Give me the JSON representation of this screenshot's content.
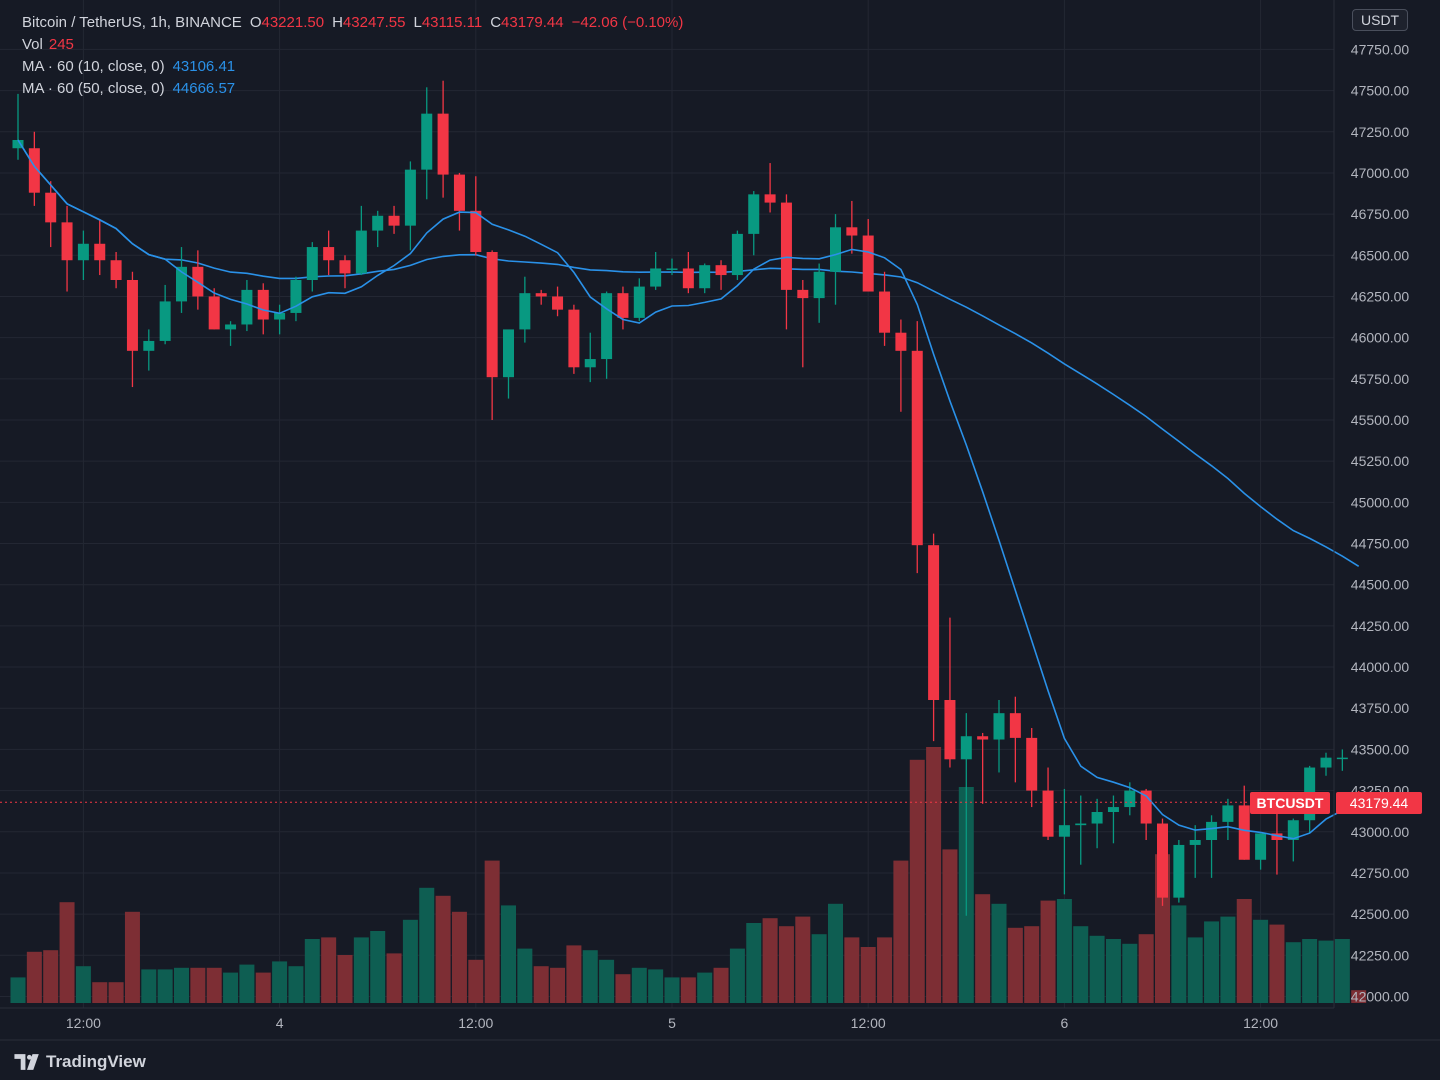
{
  "legend": {
    "title": "Bitcoin / TetherUS, 1h, BINANCE",
    "open_label": "O",
    "open": "43221.50",
    "high_label": "H",
    "high": "43247.55",
    "low_label": "L",
    "low": "43115.11",
    "close_label": "C",
    "close": "43179.44",
    "change": "−42.06 (−0.10%)",
    "vol_label": "Vol",
    "vol": "245",
    "ma1_label": "MA · 60 (10, close, 0)",
    "ma1": "43106.41",
    "ma2_label": "MA · 60 (50, close, 0)",
    "ma2": "44666.57"
  },
  "currency_badge": "USDT",
  "last_price_tag": {
    "symbol": "BTCUSDT",
    "price": "43179.44"
  },
  "brand": {
    "name": "TradingView",
    "icon": "tradingview-logo-icon"
  },
  "colors": {
    "up": "#089981",
    "down": "#f23645",
    "ma": "#2a91e8",
    "background": "#161a25",
    "grid": "#232733"
  },
  "chart_data": {
    "type": "candlestick",
    "symbol": "BTCUSDT",
    "interval": "1h",
    "y_ticks": [
      "47750.00",
      "47500.00",
      "47250.00",
      "47000.00",
      "46750.00",
      "46500.00",
      "46250.00",
      "46000.00",
      "45750.00",
      "45500.00",
      "45250.00",
      "45000.00",
      "44750.00",
      "44500.00",
      "44250.00",
      "44000.00",
      "43750.00",
      "43500.00",
      "43250.00",
      "43000.00",
      "42750.00",
      "42500.00",
      "42250.00",
      "42000.00"
    ],
    "y_tick_values": [
      47750,
      47500,
      47250,
      47000,
      46750,
      46500,
      46250,
      46000,
      45750,
      45500,
      45250,
      45000,
      44750,
      44500,
      44250,
      44000,
      43750,
      43500,
      43250,
      43000,
      42750,
      42500,
      42250,
      42000
    ],
    "ylim": [
      41930,
      48050
    ],
    "x_ticks": [
      {
        "label": "12:00",
        "index": 4
      },
      {
        "label": "4",
        "index": 16
      },
      {
        "label": "12:00",
        "index": 28
      },
      {
        "label": "5",
        "index": 40
      },
      {
        "label": "12:00",
        "index": 52
      },
      {
        "label": "6",
        "index": 64
      },
      {
        "label": "12:00",
        "index": 76
      }
    ],
    "volume_range": [
      0,
      10
    ],
    "candles": [
      {
        "o": 47150,
        "h": 47480,
        "l": 47080,
        "c": 47200,
        "v": 1.6
      },
      {
        "o": 47150,
        "h": 47250,
        "l": 46800,
        "c": 46880,
        "v": 3.2
      },
      {
        "o": 46880,
        "h": 46950,
        "l": 46550,
        "c": 46700,
        "v": 3.3
      },
      {
        "o": 46700,
        "h": 46800,
        "l": 46280,
        "c": 46470,
        "v": 6.3
      },
      {
        "o": 46470,
        "h": 46650,
        "l": 46350,
        "c": 46570,
        "v": 2.3
      },
      {
        "o": 46570,
        "h": 46720,
        "l": 46380,
        "c": 46470,
        "v": 1.3
      },
      {
        "o": 46470,
        "h": 46520,
        "l": 46300,
        "c": 46350,
        "v": 1.3
      },
      {
        "o": 46350,
        "h": 46400,
        "l": 45700,
        "c": 45920,
        "v": 5.7
      },
      {
        "o": 45920,
        "h": 46050,
        "l": 45800,
        "c": 45980,
        "v": 2.1
      },
      {
        "o": 45980,
        "h": 46320,
        "l": 45960,
        "c": 46220,
        "v": 2.1
      },
      {
        "o": 46220,
        "h": 46550,
        "l": 46150,
        "c": 46430,
        "v": 2.2
      },
      {
        "o": 46430,
        "h": 46530,
        "l": 46170,
        "c": 46250,
        "v": 2.2
      },
      {
        "o": 46250,
        "h": 46300,
        "l": 46050,
        "c": 46050,
        "v": 2.2
      },
      {
        "o": 46050,
        "h": 46100,
        "l": 45950,
        "c": 46080,
        "v": 1.9
      },
      {
        "o": 46080,
        "h": 46350,
        "l": 46040,
        "c": 46290,
        "v": 2.4
      },
      {
        "o": 46290,
        "h": 46330,
        "l": 46020,
        "c": 46110,
        "v": 1.9
      },
      {
        "o": 46110,
        "h": 46200,
        "l": 46020,
        "c": 46150,
        "v": 2.6
      },
      {
        "o": 46150,
        "h": 46370,
        "l": 46100,
        "c": 46350,
        "v": 2.3
      },
      {
        "o": 46350,
        "h": 46580,
        "l": 46280,
        "c": 46550,
        "v": 4.0
      },
      {
        "o": 46550,
        "h": 46650,
        "l": 46380,
        "c": 46470,
        "v": 4.1
      },
      {
        "o": 46470,
        "h": 46500,
        "l": 46300,
        "c": 46390,
        "v": 3.0
      },
      {
        "o": 46390,
        "h": 46800,
        "l": 46380,
        "c": 46650,
        "v": 4.1
      },
      {
        "o": 46650,
        "h": 46770,
        "l": 46550,
        "c": 46740,
        "v": 4.5
      },
      {
        "o": 46740,
        "h": 46800,
        "l": 46630,
        "c": 46680,
        "v": 3.1
      },
      {
        "o": 46680,
        "h": 47070,
        "l": 46530,
        "c": 47020,
        "v": 5.2
      },
      {
        "o": 47020,
        "h": 47520,
        "l": 46840,
        "c": 47360,
        "v": 7.2
      },
      {
        "o": 47360,
        "h": 47560,
        "l": 46850,
        "c": 46990,
        "v": 6.7
      },
      {
        "o": 46990,
        "h": 47000,
        "l": 46650,
        "c": 46770,
        "v": 5.7
      },
      {
        "o": 46770,
        "h": 46980,
        "l": 46500,
        "c": 46520,
        "v": 2.7
      },
      {
        "o": 46520,
        "h": 46530,
        "l": 45500,
        "c": 45760,
        "v": 8.9
      },
      {
        "o": 45760,
        "h": 46030,
        "l": 45630,
        "c": 46050,
        "v": 6.1
      },
      {
        "o": 46050,
        "h": 46370,
        "l": 45970,
        "c": 46270,
        "v": 3.4
      },
      {
        "o": 46270,
        "h": 46290,
        "l": 46200,
        "c": 46250,
        "v": 2.3
      },
      {
        "o": 46250,
        "h": 46310,
        "l": 46130,
        "c": 46170,
        "v": 2.2
      },
      {
        "o": 46170,
        "h": 46200,
        "l": 45780,
        "c": 45820,
        "v": 3.6
      },
      {
        "o": 45820,
        "h": 46030,
        "l": 45730,
        "c": 45870,
        "v": 3.3
      },
      {
        "o": 45870,
        "h": 46280,
        "l": 45750,
        "c": 46270,
        "v": 2.7
      },
      {
        "o": 46270,
        "h": 46310,
        "l": 46050,
        "c": 46120,
        "v": 1.8
      },
      {
        "o": 46120,
        "h": 46360,
        "l": 46100,
        "c": 46310,
        "v": 2.2
      },
      {
        "o": 46310,
        "h": 46520,
        "l": 46290,
        "c": 46420,
        "v": 2.1
      },
      {
        "o": 46420,
        "h": 46480,
        "l": 46380,
        "c": 46420,
        "v": 1.6
      },
      {
        "o": 46420,
        "h": 46520,
        "l": 46270,
        "c": 46300,
        "v": 1.6
      },
      {
        "o": 46300,
        "h": 46450,
        "l": 46270,
        "c": 46440,
        "v": 1.9
      },
      {
        "o": 46440,
        "h": 46470,
        "l": 46290,
        "c": 46380,
        "v": 2.2
      },
      {
        "o": 46380,
        "h": 46650,
        "l": 46350,
        "c": 46630,
        "v": 3.4
      },
      {
        "o": 46630,
        "h": 46890,
        "l": 46500,
        "c": 46870,
        "v": 5.0
      },
      {
        "o": 46870,
        "h": 47060,
        "l": 46760,
        "c": 46820,
        "v": 5.3
      },
      {
        "o": 46820,
        "h": 46870,
        "l": 46050,
        "c": 46290,
        "v": 4.8
      },
      {
        "o": 46290,
        "h": 46350,
        "l": 45820,
        "c": 46240,
        "v": 5.4
      },
      {
        "o": 46240,
        "h": 46450,
        "l": 46090,
        "c": 46400,
        "v": 4.3
      },
      {
        "o": 46400,
        "h": 46750,
        "l": 46200,
        "c": 46670,
        "v": 6.2
      },
      {
        "o": 46670,
        "h": 46830,
        "l": 46510,
        "c": 46620,
        "v": 4.1
      },
      {
        "o": 46620,
        "h": 46720,
        "l": 46280,
        "c": 46280,
        "v": 3.5
      },
      {
        "o": 46280,
        "h": 46400,
        "l": 45950,
        "c": 46030,
        "v": 4.1
      },
      {
        "o": 46030,
        "h": 46110,
        "l": 45550,
        "c": 45920,
        "v": 8.9
      },
      {
        "o": 45920,
        "h": 46100,
        "l": 44570,
        "c": 44740,
        "v": 15.2
      },
      {
        "o": 44740,
        "h": 44810,
        "l": 43550,
        "c": 43800,
        "v": 16.0
      },
      {
        "o": 43800,
        "h": 44300,
        "l": 43390,
        "c": 43440,
        "v": 9.6
      },
      {
        "o": 43440,
        "h": 43720,
        "l": 42490,
        "c": 43580,
        "v": 13.5
      },
      {
        "o": 43580,
        "h": 43600,
        "l": 43170,
        "c": 43560,
        "v": 6.8
      },
      {
        "o": 43560,
        "h": 43800,
        "l": 43360,
        "c": 43720,
        "v": 6.2
      },
      {
        "o": 43720,
        "h": 43820,
        "l": 43300,
        "c": 43570,
        "v": 4.7
      },
      {
        "o": 43570,
        "h": 43630,
        "l": 43150,
        "c": 43250,
        "v": 4.8
      },
      {
        "o": 43250,
        "h": 43390,
        "l": 42950,
        "c": 42970,
        "v": 6.4
      },
      {
        "o": 42970,
        "h": 43260,
        "l": 42620,
        "c": 43040,
        "v": 6.5
      },
      {
        "o": 43040,
        "h": 43220,
        "l": 42800,
        "c": 43050,
        "v": 4.8
      },
      {
        "o": 43050,
        "h": 43200,
        "l": 42900,
        "c": 43120,
        "v": 4.2
      },
      {
        "o": 43120,
        "h": 43220,
        "l": 42930,
        "c": 43150,
        "v": 4.0
      },
      {
        "o": 43150,
        "h": 43300,
        "l": 43100,
        "c": 43250,
        "v": 3.7
      },
      {
        "o": 43250,
        "h": 43260,
        "l": 42950,
        "c": 43050,
        "v": 4.3
      },
      {
        "o": 43050,
        "h": 43080,
        "l": 42550,
        "c": 42600,
        "v": 9.3
      },
      {
        "o": 42600,
        "h": 42950,
        "l": 42570,
        "c": 42920,
        "v": 6.1
      },
      {
        "o": 42920,
        "h": 43040,
        "l": 42720,
        "c": 42950,
        "v": 4.1
      },
      {
        "o": 42950,
        "h": 43100,
        "l": 42720,
        "c": 43060,
        "v": 5.1
      },
      {
        "o": 43060,
        "h": 43200,
        "l": 42950,
        "c": 43160,
        "v": 5.4
      },
      {
        "o": 43160,
        "h": 43280,
        "l": 42830,
        "c": 42830,
        "v": 6.5
      },
      {
        "o": 42830,
        "h": 42990,
        "l": 42770,
        "c": 42990,
        "v": 5.2
      },
      {
        "o": 42990,
        "h": 43120,
        "l": 42740,
        "c": 42950,
        "v": 4.9
      },
      {
        "o": 42950,
        "h": 43080,
        "l": 42820,
        "c": 43070,
        "v": 3.8
      },
      {
        "o": 43070,
        "h": 43400,
        "l": 42990,
        "c": 43390,
        "v": 4.0
      },
      {
        "o": 43390,
        "h": 43480,
        "l": 43340,
        "c": 43450,
        "v": 3.9
      },
      {
        "o": 43450,
        "h": 43500,
        "l": 43370,
        "c": 43450,
        "v": 4.0
      },
      {
        "o": 43221.5,
        "h": 43247.55,
        "l": 43115.11,
        "c": 43179.44,
        "v": 0.8
      }
    ]
  }
}
